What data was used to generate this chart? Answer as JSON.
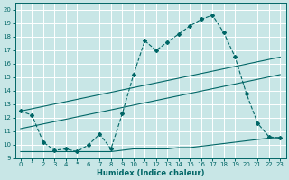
{
  "xlabel": "Humidex (Indice chaleur)",
  "bg_color": "#c8e6e6",
  "grid_color": "#d4ecec",
  "line_color": "#006666",
  "xlim": [
    -0.5,
    23.5
  ],
  "ylim": [
    9,
    20.5
  ],
  "x_ticks": [
    0,
    1,
    2,
    3,
    4,
    5,
    6,
    7,
    8,
    9,
    10,
    11,
    12,
    13,
    14,
    15,
    16,
    17,
    18,
    19,
    20,
    21,
    22,
    23
  ],
  "y_ticks": [
    9,
    10,
    11,
    12,
    13,
    14,
    15,
    16,
    17,
    18,
    19,
    20
  ],
  "line1_x": [
    0,
    1,
    2,
    3,
    4,
    5,
    6,
    7,
    8,
    9,
    10,
    11,
    12,
    13,
    14,
    15,
    16,
    17,
    18,
    19,
    20,
    21,
    22,
    23
  ],
  "line1_y": [
    12.5,
    12.2,
    10.2,
    9.6,
    9.7,
    9.5,
    10.0,
    10.8,
    9.7,
    12.3,
    15.2,
    17.7,
    17.0,
    17.6,
    18.2,
    18.8,
    19.3,
    19.6,
    18.3,
    16.5,
    13.8,
    11.6,
    10.6,
    10.5
  ],
  "line2_x": [
    0,
    23
  ],
  "line2_y": [
    12.5,
    16.5
  ],
  "line3_x": [
    0,
    23
  ],
  "line3_y": [
    11.2,
    15.2
  ],
  "line4_x": [
    0,
    1,
    2,
    3,
    4,
    5,
    6,
    7,
    8,
    9,
    10,
    11,
    12,
    13,
    14,
    15,
    16,
    17,
    18,
    19,
    20,
    21,
    22,
    23
  ],
  "line4_y": [
    9.5,
    9.5,
    9.5,
    9.5,
    9.5,
    9.5,
    9.5,
    9.5,
    9.5,
    9.6,
    9.7,
    9.7,
    9.7,
    9.7,
    9.8,
    9.8,
    9.9,
    10.0,
    10.1,
    10.2,
    10.3,
    10.4,
    10.5,
    10.55
  ]
}
